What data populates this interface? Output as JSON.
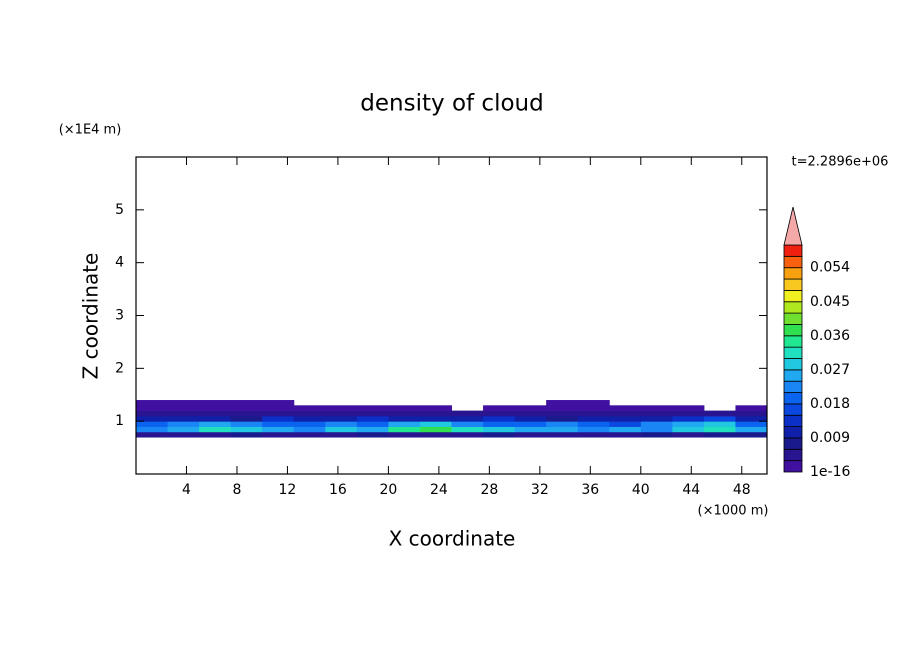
{
  "chart_data": {
    "type": "contour",
    "title": "density of cloud",
    "xlabel": "X coordinate",
    "ylabel": "Z coordinate",
    "xunit": "(×1000 m)",
    "yunit": "(×1E4 m)",
    "annotation": "t=2.2896e+06",
    "xlim": [
      0,
      50
    ],
    "ylim": [
      0,
      6
    ],
    "xticks": [
      4,
      8,
      12,
      16,
      20,
      24,
      28,
      32,
      36,
      40,
      44,
      48
    ],
    "yticks": [
      1,
      2,
      3,
      4,
      5
    ],
    "x": [
      1.25,
      3.75,
      6.25,
      8.75,
      11.25,
      13.75,
      16.25,
      18.75,
      21.25,
      23.75,
      26.25,
      28.75,
      31.25,
      33.75,
      36.25,
      38.75,
      41.25,
      43.75,
      46.25,
      48.75
    ],
    "z": [
      0.75,
      0.85,
      0.95,
      1.05,
      1.15,
      1.25,
      1.35
    ],
    "values": [
      [
        0.004,
        0.005,
        0.004,
        0.006,
        0.005,
        0.004,
        0.005,
        0.006,
        0.005,
        0.004,
        0.005,
        0.006,
        0.004,
        0.005,
        0.005,
        0.004,
        0.006,
        0.005,
        0.007,
        0.006
      ],
      [
        0.021,
        0.026,
        0.03,
        0.028,
        0.024,
        0.022,
        0.027,
        0.025,
        0.033,
        0.036,
        0.031,
        0.027,
        0.024,
        0.026,
        0.022,
        0.025,
        0.021,
        0.028,
        0.03,
        0.024
      ],
      [
        0.018,
        0.022,
        0.025,
        0.021,
        0.019,
        0.02,
        0.023,
        0.018,
        0.024,
        0.027,
        0.022,
        0.02,
        0.018,
        0.021,
        0.019,
        0.017,
        0.022,
        0.026,
        0.029,
        0.02
      ],
      [
        0.009,
        0.011,
        0.01,
        0.008,
        0.012,
        0.009,
        0.01,
        0.014,
        0.011,
        0.009,
        0.01,
        0.012,
        0.009,
        0.008,
        0.011,
        0.01,
        0.009,
        0.013,
        0.015,
        0.011
      ],
      [
        0.004,
        0.003,
        0.005,
        0.004,
        0.003,
        0.005,
        0.004,
        0.003,
        0.004,
        0.005,
        0.003,
        0.004,
        0.003,
        0.005,
        0.004,
        0.003,
        0.004,
        0.005,
        0.004,
        0.003
      ],
      [
        0.002,
        0.002,
        0.001,
        0.002,
        0.001,
        0.002,
        0.001,
        0.001,
        0.002,
        0.001,
        null,
        0.001,
        0.001,
        0.002,
        0.001,
        0.001,
        0.002,
        0.001,
        null,
        0.002
      ],
      [
        0.001,
        0.001,
        0.001,
        0.001,
        0.001,
        null,
        null,
        null,
        null,
        null,
        null,
        null,
        null,
        0.001,
        0.001,
        null,
        null,
        null,
        null,
        null
      ]
    ],
    "levels": [
      1e-16,
      0.003,
      0.006,
      0.009,
      0.012,
      0.015,
      0.018,
      0.021,
      0.024,
      0.027,
      0.03,
      0.033,
      0.036,
      0.039,
      0.042,
      0.045,
      0.048,
      0.051,
      0.054,
      0.057
    ],
    "colors": [
      "#4010a0",
      "#2a1590",
      "#1a1a8c",
      "#1020a8",
      "#0a30c8",
      "#0a48e0",
      "#0a64f0",
      "#1a86f5",
      "#20a8f0",
      "#20c8e0",
      "#20e0c0",
      "#20e890",
      "#30e050",
      "#70e030",
      "#b0e820",
      "#f0f020",
      "#f8c820",
      "#f8a010",
      "#f86010",
      "#f02010"
    ],
    "extend_color": "#f4a8a8",
    "clim": [
      0,
      0.06
    ],
    "cticks": [
      1e-16,
      0.009,
      0.018,
      0.027,
      0.036,
      0.045,
      0.054
    ]
  }
}
